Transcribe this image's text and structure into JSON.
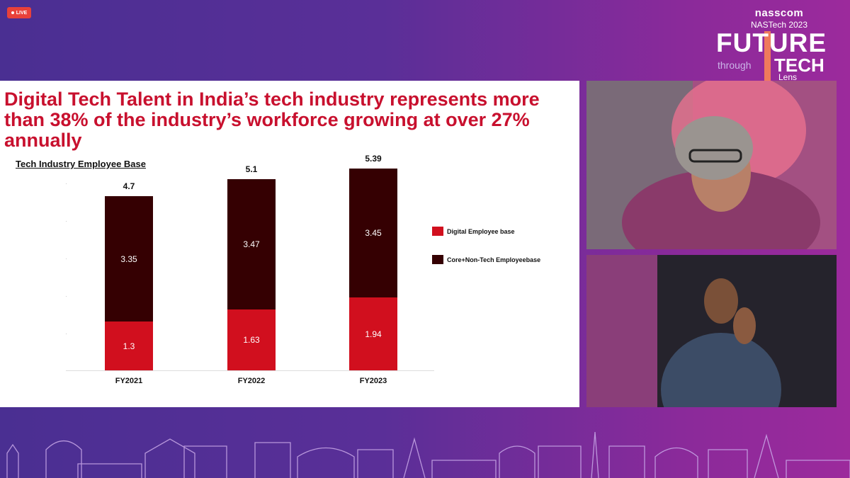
{
  "live_badge": {
    "label": "LIVE",
    "color": "#e8413a"
  },
  "branding": {
    "org": "nasscom",
    "event": "NASTech 2023",
    "title_line1": "FUTURE",
    "through": "through",
    "title_line2": "TECH",
    "lens": "Lens"
  },
  "slide": {
    "headline": "Digital Tech Talent in India’s tech industry represents more than 38% of the industry’s workforce growing at over 27% annually",
    "chart_title": "Tech Industry Employee Base"
  },
  "chart_data": {
    "type": "bar",
    "stacked": true,
    "title": "Tech Industry Employee Base",
    "categories": [
      "FY2021",
      "FY2022",
      "FY2023"
    ],
    "series": [
      {
        "name": "Digital Employee base",
        "values": [
          1.3,
          1.63,
          1.94
        ],
        "value_labels": [
          "1.3",
          "1.63",
          "1.94"
        ],
        "color": "#d10f1e"
      },
      {
        "name": "Core+Non-Tech Employeebase",
        "values": [
          3.35,
          3.47,
          3.45
        ],
        "value_labels": [
          "3.35",
          "3.47",
          "3.45"
        ],
        "color": "#350002"
      }
    ],
    "totals": [
      "4.7",
      "5.1",
      "5.39"
    ],
    "ylim": [
      0,
      5.39
    ],
    "legend_position": "right",
    "grid": false
  },
  "video_feeds": [
    {
      "label": ""
    },
    {
      "label": ""
    }
  ],
  "colors": {
    "background": "#5a2f98",
    "accent": "#c8102e"
  }
}
